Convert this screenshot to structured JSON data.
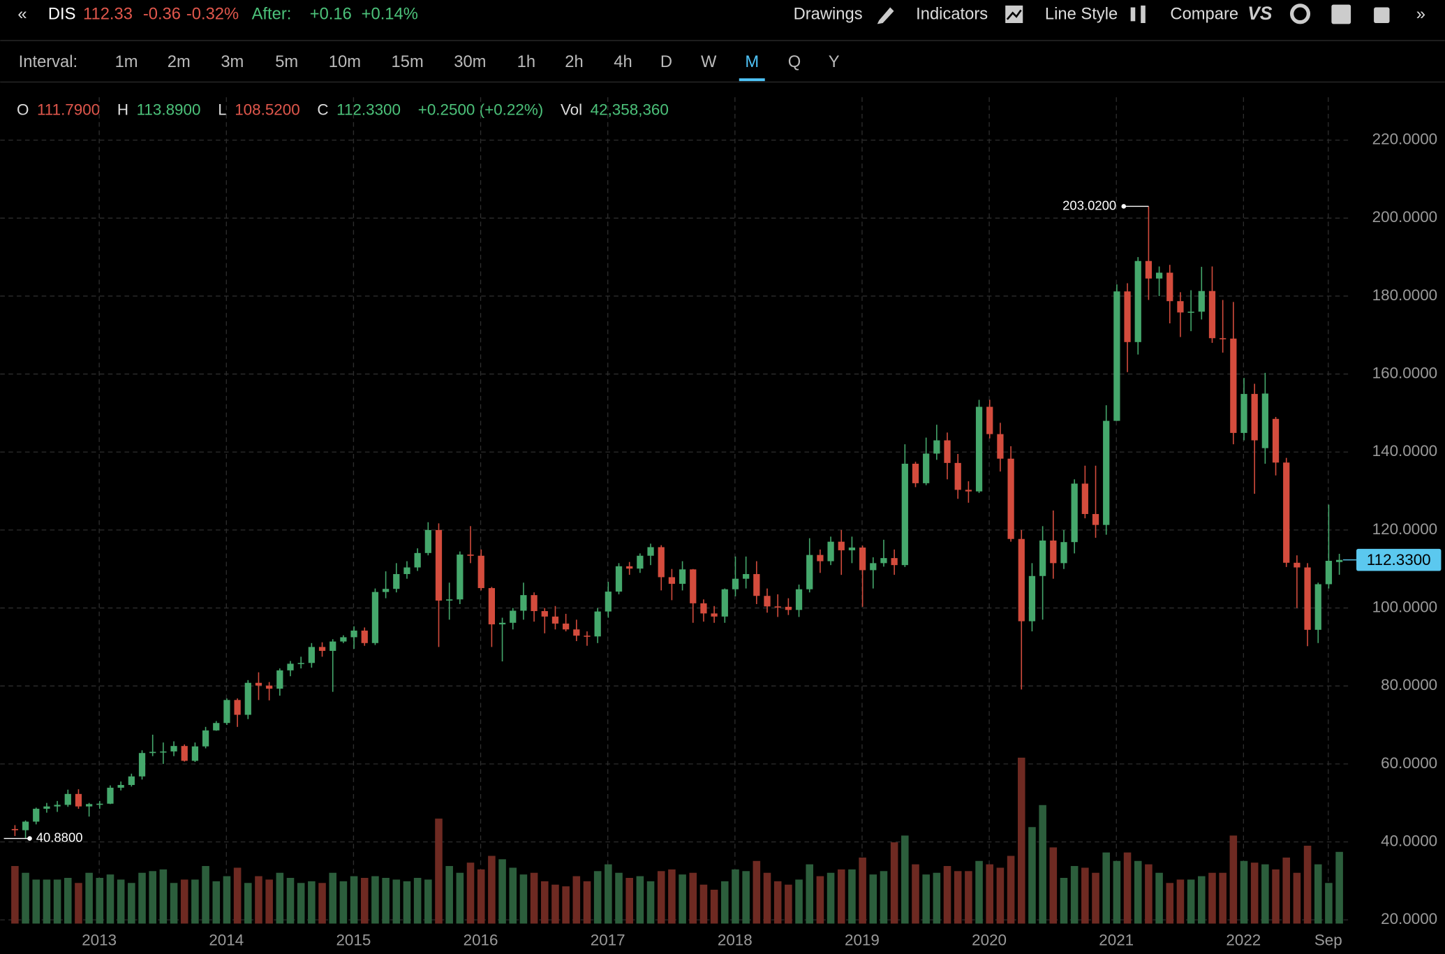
{
  "toolbar": {
    "symbol": "DIS",
    "price": "112.33",
    "change": "-0.36",
    "change_pct": "-0.32%",
    "after_label": "After:",
    "after_change": "+0.16",
    "after_pct": "+0.14%",
    "buttons": [
      "Drawings",
      "Indicators",
      "Line Style",
      "Compare"
    ]
  },
  "interval": {
    "label": "Interval:",
    "options": [
      "1m",
      "2m",
      "3m",
      "5m",
      "10m",
      "15m",
      "30m",
      "1h",
      "2h",
      "4h",
      "D",
      "W",
      "M",
      "Q",
      "Y"
    ],
    "selected": "M"
  },
  "legend": {
    "o_label": "O",
    "o": "111.7900",
    "h_label": "H",
    "h": "113.8900",
    "l_label": "L",
    "l": "108.5200",
    "c_label": "C",
    "c": "112.3300",
    "change": "+0.2500 (+0.22%)",
    "vol_label": "Vol",
    "vol": "42,358,360"
  },
  "chart_data": {
    "type": "candlestick",
    "up_color": "#45a86c",
    "down_color": "#d44c3d",
    "up_volume_color": "#2c5e3c",
    "down_volume_color": "#6e2a22",
    "categories": [
      null,
      null,
      null,
      null,
      null,
      null,
      null,
      null,
      null,
      "2013",
      null,
      null,
      null,
      null,
      null,
      null,
      null,
      null,
      null,
      null,
      null,
      "2014",
      null,
      null,
      null,
      null,
      null,
      null,
      null,
      null,
      null,
      null,
      null,
      "2015",
      null,
      null,
      null,
      null,
      null,
      null,
      null,
      null,
      null,
      null,
      null,
      "2016",
      null,
      null,
      null,
      null,
      null,
      null,
      null,
      null,
      null,
      null,
      null,
      "2017",
      null,
      null,
      null,
      null,
      null,
      null,
      null,
      null,
      null,
      null,
      null,
      "2018",
      null,
      null,
      null,
      null,
      null,
      null,
      null,
      null,
      null,
      null,
      null,
      "2019",
      null,
      null,
      null,
      null,
      null,
      null,
      null,
      null,
      null,
      null,
      null,
      "2020",
      null,
      null,
      null,
      null,
      null,
      null,
      null,
      null,
      null,
      null,
      null,
      "2021",
      null,
      null,
      null,
      null,
      null,
      null,
      null,
      null,
      null,
      null,
      null,
      "2022",
      null,
      null,
      null,
      null,
      null,
      null,
      null,
      "Sep"
    ],
    "open": [
      43.3,
      43.0,
      45.2,
      48.5,
      49.1,
      49.5,
      52.3,
      49.1,
      49.7,
      49.8,
      53.9,
      54.6,
      56.8,
      62.8,
      63.1,
      63.2,
      64.6,
      60.8,
      64.5,
      68.6,
      70.5,
      76.4,
      72.6,
      80.8,
      80.1,
      79.3,
      84,
      85.7,
      85.9,
      90,
      89,
      91.4,
      92.5,
      94.2,
      91,
      104.1,
      104.9,
      108.7,
      110.4,
      114.1,
      120,
      101.9,
      102.2,
      113.7,
      113.4,
      105.1,
      95.8,
      96.2,
      99.3,
      103.3,
      99.2,
      97.8,
      96,
      94.5,
      92.9,
      92.7,
      99.1,
      104.2,
      110.7,
      110.1,
      113.4,
      115.6,
      107.9,
      106.2,
      109.9,
      101.2,
      98.6,
      97.8,
      104.8,
      107.5,
      108.7,
      103.1,
      100.4,
      100.3,
      99.5,
      104.8,
      113.6,
      112,
      117,
      114.8,
      115.5,
      109.7,
      111.5,
      112.8,
      111,
      137,
      132,
      139.6,
      143,
      137.2,
      130.3,
      129.9,
      151.6,
      144.6,
      138.3,
      117.7,
      96.6,
      108.2,
      117.3,
      111.5,
      116.9,
      131.9,
      124.1,
      121.3,
      148,
      181.2,
      168.2,
      189,
      184.5,
      186,
      178.7,
      175.8,
      176,
      181.3,
      169.2,
      169.1,
      144.9,
      154.9,
      141,
      148.5,
      137.3,
      111.6,
      110.4,
      94.4,
      106.1,
      111.79
    ],
    "high": [
      44.3,
      45.5,
      48.8,
      50,
      50.5,
      53.4,
      53.5,
      50,
      50.5,
      54.5,
      55.5,
      57.5,
      63.5,
      67.5,
      65.5,
      65.8,
      65,
      65.5,
      69.5,
      71,
      76.8,
      76.8,
      81.5,
      83.5,
      81,
      84.5,
      86.4,
      87.5,
      91,
      91.2,
      92,
      93,
      95.3,
      95,
      105,
      109.4,
      111.5,
      112,
      115.3,
      122,
      121.7,
      106.5,
      114.5,
      121,
      115,
      105.4,
      97.5,
      100,
      106.5,
      104,
      100,
      100.5,
      98.5,
      97,
      94,
      100,
      106.7,
      111.5,
      111.8,
      114,
      116.5,
      116.1,
      110,
      112,
      110,
      102.2,
      100.5,
      105,
      113.2,
      113.2,
      112,
      105,
      103.5,
      102.5,
      106,
      117.9,
      115,
      118.3,
      120,
      118.3,
      116,
      113,
      117.5,
      115,
      142,
      137.5,
      143.7,
      147,
      145,
      139.5,
      132.5,
      153.4,
      153.4,
      147.5,
      141.5,
      120,
      111.5,
      121,
      125,
      120,
      133,
      136.5,
      136.5,
      152,
      183,
      183.3,
      190,
      203.02,
      187.6,
      188,
      181,
      181.5,
      187.5,
      187.6,
      179,
      178.5,
      159,
      157.5,
      160.3,
      149,
      138.5,
      113.5,
      111.5,
      106.5,
      126.5,
      113.89
    ],
    "low": [
      41.5,
      40.88,
      44.5,
      47.5,
      47.7,
      49,
      48.5,
      46.5,
      48.5,
      49.7,
      53.2,
      54.2,
      56,
      62,
      60,
      62,
      60.6,
      60.5,
      64,
      68.5,
      70,
      69.5,
      71.5,
      76.4,
      76.3,
      77.5,
      82.5,
      84.5,
      84.7,
      87.5,
      78.5,
      91,
      89.5,
      90.3,
      90.5,
      102.5,
      104,
      107.5,
      109.5,
      113.5,
      90,
      97,
      101,
      111.5,
      104.5,
      90,
      86.3,
      94.5,
      97,
      96.5,
      93.5,
      94.5,
      94,
      91.5,
      90.3,
      91,
      97.5,
      103.5,
      108.5,
      109,
      111,
      104.5,
      102,
      104.5,
      96.2,
      96.5,
      96.2,
      96.2,
      103,
      105,
      101,
      98.8,
      97.7,
      98.2,
      97.7,
      104,
      109,
      111,
      108.5,
      111.5,
      100.3,
      105,
      110.6,
      108.5,
      110.5,
      131,
      131.5,
      138,
      133,
      128,
      127,
      129.5,
      143.5,
      135,
      117,
      79.1,
      94,
      97,
      107.5,
      110,
      114,
      123,
      118,
      118.8,
      148,
      160.5,
      165,
      179,
      180,
      173,
      169.5,
      171,
      174,
      168,
      165.5,
      142,
      143,
      129.3,
      137,
      134,
      110.5,
      100,
      90.2,
      91,
      105,
      108.52
    ],
    "close": [
      43.0,
      45.2,
      48.5,
      49.1,
      49.5,
      52.3,
      49.1,
      49.7,
      49.8,
      53.9,
      54.6,
      56.8,
      62.8,
      63.1,
      63.2,
      64.6,
      60.8,
      64.5,
      68.6,
      70.5,
      76.4,
      72.6,
      80.8,
      80.1,
      79.3,
      84,
      85.7,
      85.9,
      90,
      89,
      91.4,
      92.5,
      94.2,
      91,
      104.1,
      104.9,
      108.7,
      110.4,
      114.1,
      120,
      101.9,
      102.2,
      113.7,
      113.4,
      105.1,
      95.8,
      96.2,
      99.3,
      103.3,
      99.2,
      97.8,
      96,
      94.5,
      92.9,
      92.7,
      99.1,
      104.2,
      110.7,
      110.1,
      113.4,
      115.6,
      107.9,
      106.2,
      109.9,
      101.2,
      98.6,
      97.8,
      104.8,
      107.5,
      108.7,
      103.1,
      100.4,
      100.3,
      99.5,
      104.8,
      113.6,
      112,
      117,
      114.8,
      115.5,
      109.7,
      111.5,
      112.8,
      111,
      137,
      132,
      139.6,
      143,
      137.2,
      130.3,
      129.9,
      151.6,
      144.6,
      138.3,
      117.7,
      96.6,
      108.2,
      117.3,
      111.5,
      116.9,
      131.9,
      124.1,
      121.3,
      148,
      181.2,
      168.2,
      189,
      184.5,
      186,
      178.7,
      175.8,
      176,
      181.3,
      169.2,
      169.1,
      144.9,
      154.9,
      143,
      155,
      137.3,
      111.6,
      110.4,
      94.4,
      106.1,
      112.1,
      112.33
    ],
    "volume": [
      34,
      30,
      26,
      26,
      26,
      27,
      24,
      30,
      27,
      29,
      26,
      24,
      30,
      31,
      32,
      24,
      26,
      26,
      34,
      25,
      28,
      33,
      24,
      28,
      26,
      30,
      27,
      24,
      25,
      24,
      30,
      25,
      28,
      27,
      28,
      27,
      26,
      25,
      27,
      26,
      62,
      34,
      30,
      36,
      32,
      40,
      38,
      33,
      29,
      30,
      25,
      23,
      22,
      28,
      25,
      31,
      35,
      30,
      27,
      28,
      25,
      31,
      32,
      29,
      30,
      23,
      20,
      25,
      32,
      31,
      37,
      30,
      25,
      23,
      26,
      35,
      28,
      30,
      32,
      32,
      39,
      29,
      31,
      48,
      52,
      35,
      29,
      30,
      34,
      31,
      31,
      37,
      35,
      33,
      40,
      98,
      57,
      70,
      45,
      27,
      34,
      33,
      30,
      42,
      37,
      42,
      37,
      35,
      30,
      24,
      26,
      26,
      28,
      30,
      30,
      52,
      37,
      36,
      35,
      32,
      39,
      30,
      46,
      35,
      24,
      42.35836
    ],
    "ylim": [
      19.5,
      231
    ],
    "yticks": [
      {
        "value": 20,
        "label": "20.0000"
      },
      {
        "value": 40,
        "label": "40.0000"
      },
      {
        "value": 60,
        "label": "60.0000"
      },
      {
        "value": 80,
        "label": "80.0000"
      },
      {
        "value": 100,
        "label": "100.0000"
      },
      {
        "value": 120,
        "label": "120.0000"
      },
      {
        "value": 140,
        "label": "140.0000"
      },
      {
        "value": 160,
        "label": "160.0000"
      },
      {
        "value": 180,
        "label": "180.0000"
      },
      {
        "value": 200,
        "label": "200.0000"
      },
      {
        "value": 220,
        "label": "220.0000"
      }
    ],
    "grid": true,
    "high_label": "203.0200",
    "low_label": "40.8800",
    "last_price_label": "112.3300",
    "last_price_color": "#5bc8ef"
  }
}
